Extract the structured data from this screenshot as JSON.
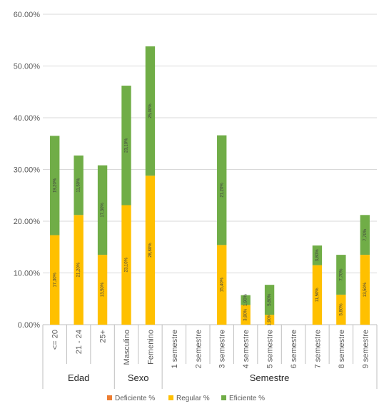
{
  "chart_data": {
    "type": "bar",
    "stacked": true,
    "title": "",
    "xlabel": "",
    "ylabel": "",
    "ylim": [
      0,
      60
    ],
    "y_ticks": [
      "0.00%",
      "10.00%",
      "20.00%",
      "30.00%",
      "40.00%",
      "50.00%",
      "60.00%"
    ],
    "grid": true,
    "legend_position": "bottom",
    "categories": [
      "<= 20",
      "21 - 24",
      "25+",
      "Masculino",
      "Femenino",
      "1 semestre",
      "2 semestre",
      "3 semestre",
      "4 semestre",
      "5 semestre",
      "6 semestre",
      "7 semestre",
      "8 semestre",
      "9 semestre"
    ],
    "groups": [
      {
        "name": "Edad",
        "start": 0,
        "end": 2
      },
      {
        "name": "Sexo",
        "start": 3,
        "end": 4
      },
      {
        "name": "Semestre",
        "start": 5,
        "end": 13
      }
    ],
    "series": [
      {
        "name": "Deficiente %",
        "color": "#ED7D31",
        "values": [
          0,
          0,
          0,
          0,
          0,
          0,
          0,
          0,
          0,
          0,
          0,
          0,
          0,
          0
        ],
        "labels": [
          "",
          "",
          "",
          "",
          "",
          "",
          "",
          "",
          "",
          "",
          "",
          "",
          "",
          ""
        ]
      },
      {
        "name": "Regular %",
        "color": "#FFC000",
        "values": [
          17.3,
          21.2,
          13.5,
          23.1,
          28.8,
          0,
          0,
          15.4,
          3.8,
          1.9,
          0,
          11.5,
          5.8,
          13.5
        ],
        "labels": [
          "17,30%",
          "21,20%",
          "13,50%",
          "23,10%",
          "28,80%",
          "",
          "",
          "15,40%",
          "3,80%",
          "1,90%",
          "",
          "11,50%",
          "5,80%",
          "13,50%"
        ]
      },
      {
        "name": "Eficiente %",
        "color": "#70AD47",
        "values": [
          19.2,
          11.5,
          17.3,
          23.1,
          25.0,
          0,
          0,
          21.2,
          1.9,
          5.8,
          0,
          3.8,
          7.7,
          7.7
        ],
        "labels": [
          "19,20%",
          "11,50%",
          "17,30%",
          "23,10%",
          "25,00%",
          "",
          "",
          "21,20%",
          "1,90%",
          "5,80%",
          "",
          "3,80%",
          "7,70%",
          "7,70%"
        ]
      }
    ]
  }
}
